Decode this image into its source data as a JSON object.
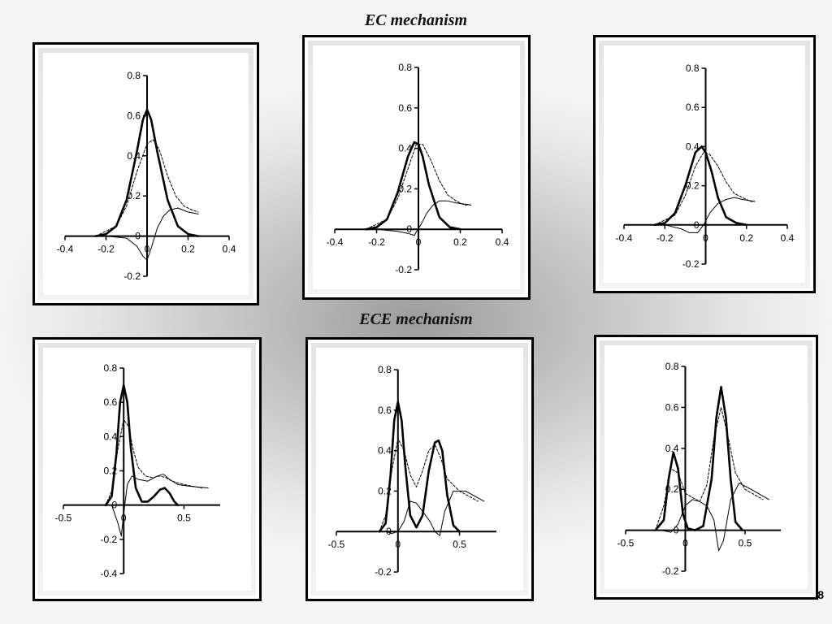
{
  "sections": {
    "ec_title": "EC mechanism",
    "ece_title": "ECE mechanism"
  },
  "page_number": "8",
  "chart_data": [
    {
      "type": "line",
      "group": "EC mechanism",
      "xlim": [
        -0.4,
        0.4
      ],
      "ylim": [
        -0.2,
        0.8
      ],
      "x_ticks": [
        -0.4,
        -0.2,
        0,
        0.2,
        0.4
      ],
      "x_tick_labels": [
        "-0.4",
        "-0.2",
        "0",
        "0.2",
        "0.4"
      ],
      "y_ticks": [
        -0.2,
        0,
        0.2,
        0.4,
        0.6,
        0.8
      ],
      "y_tick_labels": [
        "-0.2",
        "0",
        "0.2",
        "0.4",
        "0.6",
        "0.8"
      ],
      "series": [
        {
          "style": "thick",
          "x": [
            -0.25,
            -0.2,
            -0.15,
            -0.1,
            -0.05,
            -0.02,
            0,
            0.02,
            0.05,
            0.1,
            0.15,
            0.2,
            0.25
          ],
          "y": [
            0,
            0.01,
            0.05,
            0.18,
            0.42,
            0.58,
            0.63,
            0.58,
            0.42,
            0.18,
            0.05,
            0.01,
            0
          ]
        },
        {
          "style": "dash",
          "x": [
            -0.25,
            -0.15,
            -0.1,
            -0.05,
            0,
            0.03,
            0.06,
            0.1,
            0.14,
            0.18,
            0.22,
            0.25
          ],
          "y": [
            0,
            0.05,
            0.15,
            0.32,
            0.46,
            0.48,
            0.43,
            0.3,
            0.2,
            0.15,
            0.13,
            0.12
          ]
        },
        {
          "style": "fine",
          "x": [
            -0.2,
            -0.1,
            -0.05,
            -0.02,
            0,
            0.02,
            0.05,
            0.08,
            0.11,
            0.15,
            0.2,
            0.25
          ],
          "y": [
            0,
            -0.01,
            -0.05,
            -0.1,
            -0.12,
            -0.06,
            0.04,
            0.1,
            0.13,
            0.14,
            0.12,
            0.11
          ]
        }
      ]
    },
    {
      "type": "line",
      "group": "EC mechanism",
      "xlim": [
        -0.4,
        0.4
      ],
      "ylim": [
        -0.2,
        0.8
      ],
      "x_ticks": [
        -0.4,
        -0.2,
        0,
        0.2,
        0.4
      ],
      "x_tick_labels": [
        "-0.4",
        "-0.2",
        "0",
        "0.2",
        "0.4"
      ],
      "y_ticks": [
        -0.2,
        0,
        0.2,
        0.4,
        0.6,
        0.8
      ],
      "y_tick_labels": [
        "-0.2",
        "0",
        "0.2",
        "0.4",
        "0.6",
        "0.8"
      ],
      "series": [
        {
          "style": "thick",
          "x": [
            -0.25,
            -0.2,
            -0.15,
            -0.1,
            -0.05,
            -0.02,
            0,
            0.02,
            0.05,
            0.1,
            0.15,
            0.2
          ],
          "y": [
            0,
            0.01,
            0.05,
            0.18,
            0.36,
            0.43,
            0.42,
            0.36,
            0.22,
            0.06,
            0.01,
            0
          ]
        },
        {
          "style": "dash",
          "x": [
            -0.25,
            -0.15,
            -0.1,
            -0.05,
            -0.01,
            0.02,
            0.06,
            0.1,
            0.14,
            0.18,
            0.22,
            0.25
          ],
          "y": [
            0,
            0.05,
            0.15,
            0.3,
            0.42,
            0.42,
            0.34,
            0.24,
            0.17,
            0.14,
            0.12,
            0.12
          ]
        },
        {
          "style": "fine",
          "x": [
            -0.2,
            -0.1,
            -0.05,
            -0.02,
            0.01,
            0.04,
            0.07,
            0.1,
            0.14,
            0.18,
            0.25
          ],
          "y": [
            0,
            -0.01,
            -0.02,
            -0.03,
            0.02,
            0.08,
            0.12,
            0.14,
            0.14,
            0.13,
            0.12
          ]
        }
      ]
    },
    {
      "type": "line",
      "group": "EC mechanism",
      "xlim": [
        -0.4,
        0.4
      ],
      "ylim": [
        -0.2,
        0.8
      ],
      "x_ticks": [
        -0.4,
        -0.2,
        0,
        0.2,
        0.4
      ],
      "x_tick_labels": [
        "-0.4",
        "-0.2",
        "0",
        "0.2",
        "0.4"
      ],
      "y_ticks": [
        -0.2,
        0,
        0.2,
        0.4,
        0.6,
        0.8
      ],
      "y_tick_labels": [
        "-0.2",
        "0",
        "0.2",
        "0.4",
        "0.6",
        "0.8"
      ],
      "series": [
        {
          "style": "thick",
          "x": [
            -0.25,
            -0.2,
            -0.15,
            -0.1,
            -0.05,
            -0.02,
            0,
            0.03,
            0.06,
            0.1,
            0.15,
            0.2
          ],
          "y": [
            0,
            0.01,
            0.06,
            0.2,
            0.37,
            0.4,
            0.37,
            0.27,
            0.14,
            0.04,
            0.01,
            0
          ]
        },
        {
          "style": "dash",
          "x": [
            -0.25,
            -0.15,
            -0.1,
            -0.05,
            -0.01,
            0.02,
            0.06,
            0.1,
            0.14,
            0.18,
            0.22,
            0.24
          ],
          "y": [
            0,
            0.05,
            0.15,
            0.3,
            0.37,
            0.36,
            0.3,
            0.22,
            0.16,
            0.14,
            0.12,
            0.12
          ]
        },
        {
          "style": "fine",
          "x": [
            -0.2,
            -0.12,
            -0.08,
            -0.04,
            -0.01,
            0.02,
            0.06,
            0.1,
            0.14,
            0.18,
            0.24
          ],
          "y": [
            0,
            -0.02,
            -0.04,
            -0.04,
            0,
            0.06,
            0.11,
            0.13,
            0.14,
            0.13,
            0.12
          ]
        }
      ]
    },
    {
      "type": "line",
      "group": "ECE mechanism",
      "xlim": [
        -0.5,
        0.8
      ],
      "ylim": [
        -0.4,
        0.8
      ],
      "x_ticks": [
        -0.5,
        0,
        0.5
      ],
      "x_tick_labels": [
        "-0.5",
        "0",
        "0.5"
      ],
      "y_ticks": [
        -0.4,
        -0.2,
        0,
        0.2,
        0.4,
        0.6,
        0.8
      ],
      "y_tick_labels": [
        "-0.4",
        "-0.2",
        "0",
        "0.2",
        "0.4",
        "0.6",
        "0.8"
      ],
      "series": [
        {
          "style": "thick",
          "x": [
            -0.15,
            -0.1,
            -0.06,
            -0.03,
            0,
            0.03,
            0.06,
            0.1,
            0.15,
            0.2,
            0.25,
            0.3,
            0.34,
            0.38,
            0.42,
            0.45
          ],
          "y": [
            0,
            0.05,
            0.3,
            0.6,
            0.7,
            0.6,
            0.33,
            0.1,
            0.02,
            0.02,
            0.05,
            0.09,
            0.1,
            0.07,
            0.02,
            0
          ]
        },
        {
          "style": "dash",
          "x": [
            -0.15,
            -0.1,
            -0.05,
            0,
            0.04,
            0.08,
            0.12,
            0.18,
            0.24,
            0.3,
            0.35,
            0.4,
            0.5,
            0.65
          ],
          "y": [
            0,
            0.08,
            0.32,
            0.5,
            0.46,
            0.32,
            0.22,
            0.17,
            0.16,
            0.17,
            0.16,
            0.14,
            0.12,
            0.1
          ]
        },
        {
          "style": "fine",
          "x": [
            -0.1,
            -0.05,
            -0.02,
            0,
            0.03,
            0.07,
            0.12,
            0.2,
            0.28,
            0.33,
            0.38,
            0.45,
            0.55,
            0.7
          ],
          "y": [
            0,
            -0.1,
            -0.18,
            -0.05,
            0.12,
            0.17,
            0.15,
            0.14,
            0.17,
            0.18,
            0.15,
            0.12,
            0.11,
            0.1
          ]
        }
      ]
    },
    {
      "type": "line",
      "group": "ECE mechanism",
      "xlim": [
        -0.5,
        0.8
      ],
      "ylim": [
        -0.2,
        0.8
      ],
      "x_ticks": [
        -0.5,
        0,
        0.5
      ],
      "x_tick_labels": [
        "-0.5",
        "0",
        "0.5"
      ],
      "y_ticks": [
        -0.2,
        0,
        0.2,
        0.4,
        0.6,
        0.8
      ],
      "y_tick_labels": [
        "-0.2",
        "0",
        "0.2",
        "0.4",
        "0.6",
        "0.8"
      ],
      "series": [
        {
          "style": "thick",
          "x": [
            -0.15,
            -0.1,
            -0.06,
            -0.03,
            0,
            0.03,
            0.06,
            0.1,
            0.15,
            0.2,
            0.25,
            0.3,
            0.33,
            0.36,
            0.4,
            0.45,
            0.5
          ],
          "y": [
            0,
            0.04,
            0.28,
            0.55,
            0.64,
            0.55,
            0.32,
            0.08,
            0.02,
            0.08,
            0.3,
            0.44,
            0.45,
            0.4,
            0.18,
            0.03,
            0
          ]
        },
        {
          "style": "dash",
          "x": [
            -0.15,
            -0.1,
            -0.05,
            0,
            0.05,
            0.1,
            0.15,
            0.2,
            0.25,
            0.3,
            0.35,
            0.4,
            0.5,
            0.65
          ],
          "y": [
            0,
            0.08,
            0.3,
            0.46,
            0.4,
            0.28,
            0.22,
            0.3,
            0.4,
            0.43,
            0.36,
            0.26,
            0.2,
            0.15
          ]
        },
        {
          "style": "fine",
          "x": [
            -0.1,
            -0.05,
            0,
            0.05,
            0.1,
            0.15,
            0.2,
            0.26,
            0.3,
            0.34,
            0.38,
            0.45,
            0.55,
            0.7
          ],
          "y": [
            0,
            -0.01,
            0,
            0.05,
            0.15,
            0.14,
            0.1,
            0.05,
            0,
            -0.02,
            0.1,
            0.2,
            0.2,
            0.15
          ]
        }
      ]
    },
    {
      "type": "line",
      "group": "ECE mechanism",
      "xlim": [
        -0.5,
        0.8
      ],
      "ylim": [
        -0.2,
        0.8
      ],
      "x_ticks": [
        -0.5,
        0,
        0.5
      ],
      "x_tick_labels": [
        "-0.5",
        "0",
        "0.5"
      ],
      "y_ticks": [
        -0.2,
        0,
        0.2,
        0.4,
        0.6,
        0.8
      ],
      "y_tick_labels": [
        "-0.2",
        "0",
        "0.2",
        "0.4",
        "0.6",
        "0.8"
      ],
      "series": [
        {
          "style": "thick",
          "x": [
            -0.25,
            -0.18,
            -0.14,
            -0.1,
            -0.06,
            -0.02,
            0.02,
            0.08,
            0.15,
            0.22,
            0.26,
            0.3,
            0.34,
            0.38,
            0.42,
            0.48
          ],
          "y": [
            0,
            0.05,
            0.25,
            0.38,
            0.3,
            0.08,
            0.01,
            0,
            0.02,
            0.25,
            0.55,
            0.7,
            0.55,
            0.25,
            0.04,
            0
          ]
        },
        {
          "style": "dash",
          "x": [
            -0.25,
            -0.18,
            -0.12,
            -0.06,
            0,
            0.06,
            0.12,
            0.18,
            0.24,
            0.3,
            0.36,
            0.42,
            0.5,
            0.65
          ],
          "y": [
            0,
            0.12,
            0.3,
            0.28,
            0.18,
            0.16,
            0.14,
            0.22,
            0.45,
            0.6,
            0.45,
            0.28,
            0.2,
            0.15
          ]
        },
        {
          "style": "fine",
          "x": [
            -0.2,
            -0.12,
            -0.06,
            0,
            0.06,
            0.12,
            0.18,
            0.24,
            0.28,
            0.32,
            0.38,
            0.45,
            0.55,
            0.7
          ],
          "y": [
            0,
            -0.01,
            0.03,
            0.12,
            0.15,
            0.14,
            0.12,
            0.05,
            -0.1,
            -0.05,
            0.15,
            0.23,
            0.2,
            0.15
          ]
        }
      ]
    }
  ]
}
